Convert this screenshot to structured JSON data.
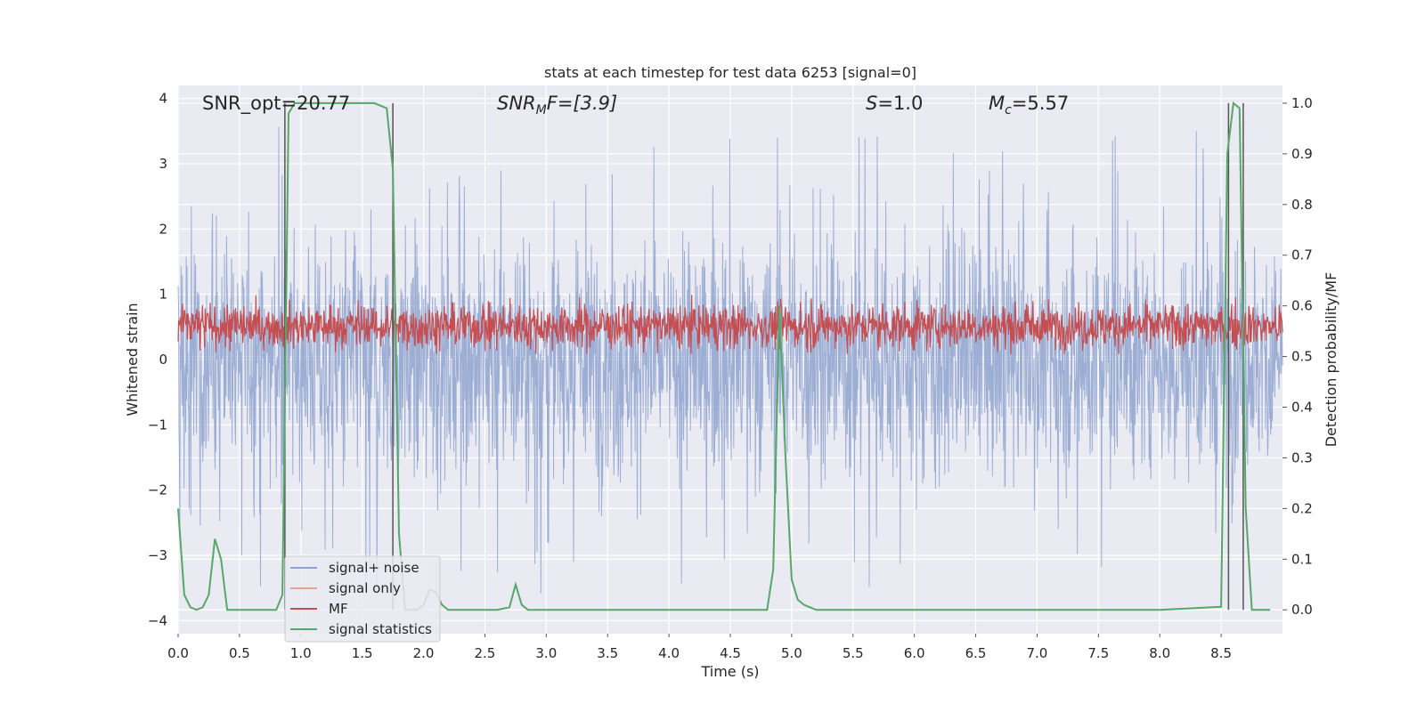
{
  "chart_data": {
    "type": "line",
    "title": "stats at each timestep for test data 6253 [signal=0]",
    "xlabel": "Time (s)",
    "ylabel_left": "Whitened strain",
    "ylabel_right": "Detection probability/MF",
    "xlim": [
      0,
      9
    ],
    "ylim_left": [
      -4.2,
      4.2
    ],
    "ylim_right": [
      -0.047,
      1.035
    ],
    "x_ticks": [
      "0.0",
      "0.5",
      "1.0",
      "1.5",
      "2.0",
      "2.5",
      "3.0",
      "3.5",
      "4.0",
      "4.5",
      "5.0",
      "5.5",
      "6.0",
      "6.5",
      "7.0",
      "7.5",
      "8.0",
      "8.5"
    ],
    "y_left_ticks": [
      "4",
      "3",
      "2",
      "1",
      "0",
      "−1",
      "−2",
      "−3",
      "−4"
    ],
    "y_right_ticks": [
      "1.0",
      "0.9",
      "0.8",
      "0.7",
      "0.6",
      "0.5",
      "0.4",
      "0.3",
      "0.2",
      "0.1",
      "0.0"
    ],
    "grid": true,
    "legend_position": "lower-left",
    "annotations": {
      "snr_opt": "SNR_opt=20.77",
      "snr_mf_main": "SNR",
      "snr_mf_sub": "M",
      "snr_mf_rest": "F=[3.9]",
      "s_main": "S",
      "s_rest": "=1.0",
      "mc_main": "M",
      "mc_sub": "c",
      "mc_rest": "=5.57"
    },
    "series": [
      {
        "name": "signal+ noise",
        "color": "#8fa3cf",
        "description": "noise-like whitened strain, amplitude roughly ±2 with spikes to ±3.5"
      },
      {
        "name": "signal only",
        "color": "#e8a48a",
        "values": []
      },
      {
        "name": "MF",
        "color": "#c44e52",
        "y_range_right_axis": [
          0.5,
          0.62
        ]
      },
      {
        "name": "signal statistics",
        "color": "#55a868",
        "x": [
          0.0,
          0.05,
          0.1,
          0.15,
          0.2,
          0.25,
          0.3,
          0.35,
          0.4,
          0.45,
          0.5,
          0.6,
          0.7,
          0.8,
          0.85,
          0.9,
          0.95,
          1.0,
          1.05,
          1.1,
          1.2,
          1.3,
          1.4,
          1.5,
          1.6,
          1.7,
          1.75,
          1.8,
          1.85,
          1.9,
          1.95,
          2.0,
          2.05,
          2.1,
          2.15,
          2.2,
          2.25,
          2.3,
          2.35,
          2.4,
          2.5,
          2.6,
          2.7,
          2.75,
          2.8,
          2.85,
          2.9,
          2.95,
          3.0,
          3.5,
          4.0,
          4.5,
          4.8,
          4.85,
          4.9,
          4.95,
          5.0,
          5.05,
          5.1,
          5.15,
          5.2,
          5.25,
          5.3,
          5.4,
          5.5,
          6.0,
          7.0,
          8.0,
          8.5,
          8.55,
          8.6,
          8.65,
          8.7,
          8.75,
          8.8,
          8.85,
          8.9
        ],
        "values": [
          0.2,
          0.03,
          0.005,
          0.0,
          0.005,
          0.03,
          0.14,
          0.1,
          0.0,
          0.0,
          0.0,
          0.0,
          0.0,
          0.0,
          0.03,
          0.98,
          1.0,
          1.0,
          1.0,
          1.0,
          1.0,
          1.0,
          1.0,
          1.0,
          1.0,
          0.99,
          0.87,
          0.15,
          0.0,
          0.0,
          0.0,
          0.01,
          0.04,
          0.035,
          0.01,
          0.0,
          0.0,
          0.0,
          0.0,
          0.0,
          0.0,
          0.0,
          0.005,
          0.05,
          0.01,
          0.0,
          0.0,
          0.0,
          0.0,
          0.0,
          0.0,
          0.0,
          0.0,
          0.08,
          0.6,
          0.3,
          0.06,
          0.02,
          0.01,
          0.005,
          0.0,
          0.0,
          0.0,
          0.0,
          0.0,
          0.0,
          0.0,
          0.0,
          0.006,
          0.9,
          1.0,
          0.99,
          0.2,
          0.0,
          0.0,
          0.0,
          0.0
        ]
      }
    ],
    "vertical_markers": [
      0.87,
      1.75,
      8.56,
      8.68
    ]
  }
}
